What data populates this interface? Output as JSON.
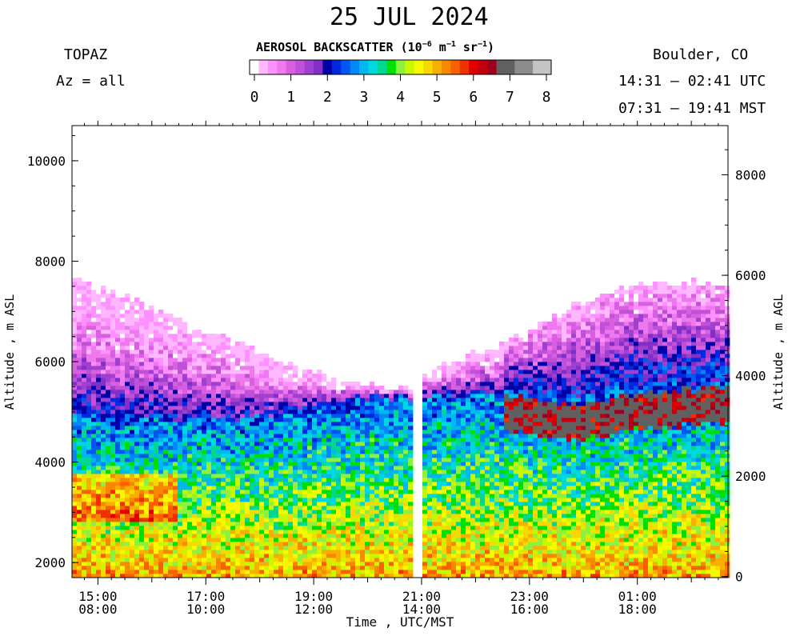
{
  "header": {
    "title": "25 JUL 2024",
    "instrument": "TOPAZ",
    "azimuth": "Az = all",
    "location": "Boulder, CO",
    "utc_range": "14:31 – 02:41 UTC",
    "mst_range": "07:31 – 19:41 MST"
  },
  "colorbar": {
    "title_text": "AEROSOL BACKSCATTER (10",
    "exp1": "−6",
    "unit_m": " m",
    "exp2": "−1",
    "unit_sr": " sr",
    "exp3": "−1",
    "close": ")",
    "tick_labels": [
      "0",
      "1",
      "2",
      "3",
      "4",
      "5",
      "6",
      "7",
      "8"
    ],
    "colors": [
      "#ffffff",
      "#ffb8ff",
      "#ff90ff",
      "#ee78ee",
      "#d860e0",
      "#c050d8",
      "#a040d0",
      "#8030c8",
      "#0000a8",
      "#0028e0",
      "#0058f0",
      "#0088f8",
      "#00b8f0",
      "#00d8e0",
      "#00d890",
      "#00e000",
      "#90f040",
      "#c8f800",
      "#f8f800",
      "#f8d800",
      "#f8b000",
      "#f88800",
      "#f86000",
      "#f03000",
      "#e00000",
      "#c00010",
      "#a00020",
      "#606060",
      "#606060",
      "#8c8c8c",
      "#8c8c8c",
      "#c4c4c4",
      "#c4c4c4"
    ]
  },
  "chart_data": {
    "type": "heatmap",
    "title": "25 JUL 2024",
    "variable": "AEROSOL BACKSCATTER",
    "value_range": [
      0,
      8
    ],
    "xlabel": "Time , UTC/MST",
    "ylabel_left": "Altitude , m ASL",
    "ylabel_right": "Altitude , m AGL",
    "x_ticks_utc": [
      "15:00",
      "17:00",
      "19:00",
      "21:00",
      "23:00",
      "01:00"
    ],
    "x_ticks_mst": [
      "08:00",
      "10:00",
      "12:00",
      "14:00",
      "16:00",
      "18:00"
    ],
    "x_range_utc_hours": [
      14.52,
      26.68
    ],
    "y_left_ticks": [
      "2000",
      "4000",
      "6000",
      "8000",
      "10000"
    ],
    "y_left_range": [
      1700,
      10700
    ],
    "y_right_ticks": [
      "0",
      "2000",
      "4000",
      "6000",
      "8000"
    ],
    "y_right_range": [
      -20,
      8980
    ],
    "time_hours_utc": [
      14.6,
      15.5,
      16.5,
      17.5,
      18.5,
      19.5,
      20.5,
      20.9,
      21.2,
      22.0,
      23.0,
      24.0,
      25.0,
      26.0,
      26.6
    ],
    "layer_top_m_asl": [
      7700,
      7300,
      6900,
      6450,
      5950,
      5600,
      5500,
      5550,
      5850,
      6150,
      6600,
      7200,
      7550,
      7600,
      7550
    ],
    "pbl_top_m_asl": [
      5000,
      4950,
      4900,
      4850,
      4950,
      5200,
      5300,
      5250,
      5300,
      5400,
      5250,
      5150,
      5350,
      5450,
      5500
    ],
    "data_gap_utc_hours": [
      20.85,
      21.0
    ],
    "colorbar_levels": [
      0,
      0.5,
      1,
      1.5,
      2,
      2.5,
      3,
      3.5,
      4,
      4.5,
      5,
      6,
      7,
      8
    ]
  }
}
